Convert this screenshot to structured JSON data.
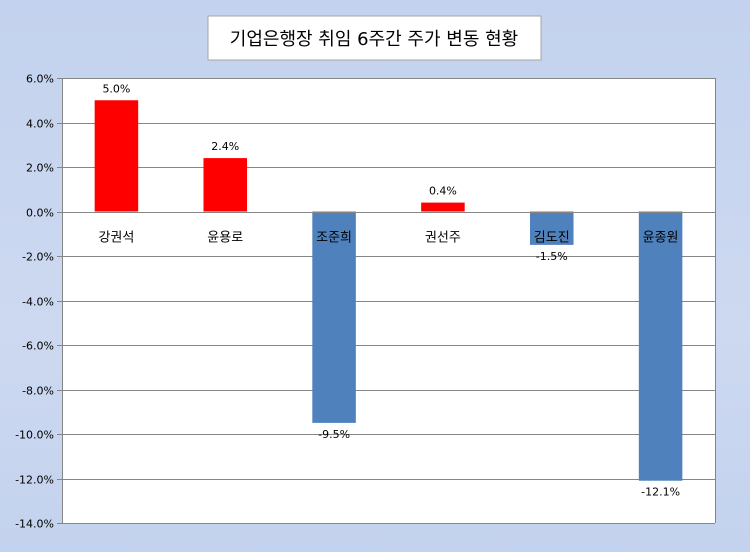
{
  "colors": {
    "positive": "#ff0000",
    "negative": "#4f81bd",
    "grid": "#868686",
    "plot_bg": "#ffffff"
  },
  "chart_data": {
    "type": "bar",
    "title": "기업은행장 취임 6주간  주가 변동 현황",
    "categories": [
      "강권석",
      "윤용로",
      "조준희",
      "권선주",
      "김도진",
      "윤종원"
    ],
    "values": [
      5.0,
      2.4,
      -9.5,
      0.4,
      -1.5,
      -12.1
    ],
    "data_labels": [
      "5.0%",
      "2.4%",
      "-9.5%",
      "0.4%",
      "-1.5%",
      "-12.1%"
    ],
    "ylim": [
      -14,
      6
    ],
    "yticks": [
      6,
      4,
      2,
      0,
      -2,
      -4,
      -6,
      -8,
      -10,
      -12,
      -14
    ],
    "ytick_labels": [
      "6.0%",
      "4.0%",
      "2.0%",
      "0.0%",
      "-2.0%",
      "-4.0%",
      "-6.0%",
      "-8.0%",
      "-10.0%",
      "-12.0%",
      "-14.0%"
    ],
    "grid": true,
    "legend": false
  }
}
